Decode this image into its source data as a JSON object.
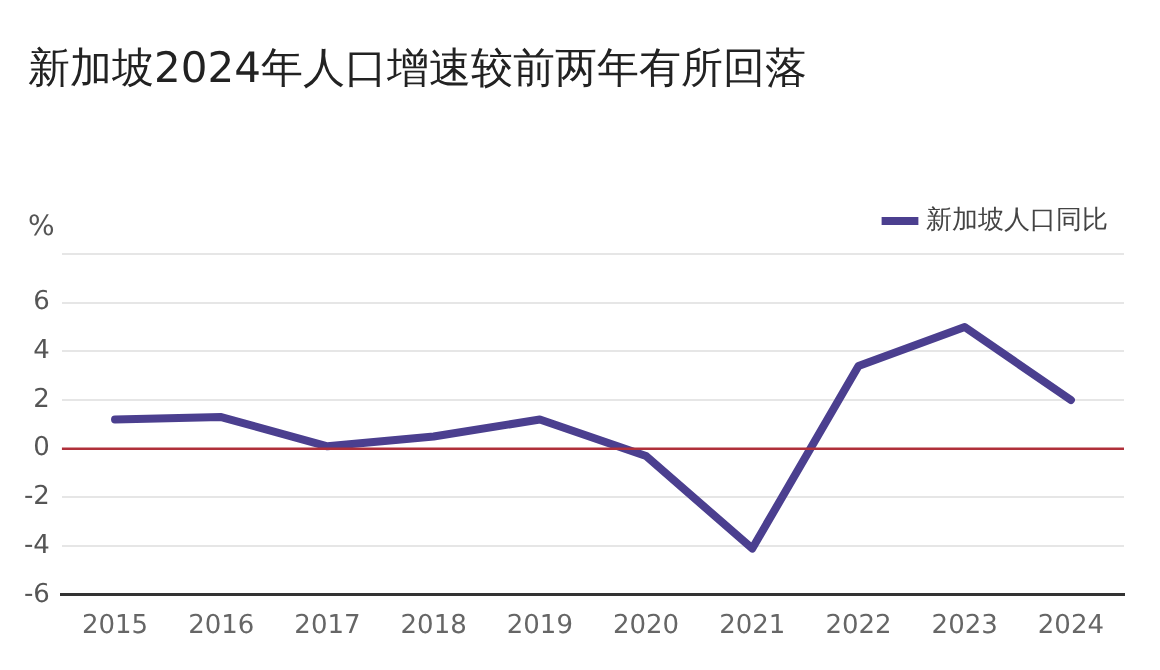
{
  "chart_data": {
    "type": "line",
    "title": "新加坡2024年人口增速较前两年有所回落",
    "ylabel": "%",
    "categories": [
      "2015",
      "2016",
      "2017",
      "2018",
      "2019",
      "2020",
      "2021",
      "2022",
      "2023",
      "2024"
    ],
    "series": [
      {
        "name": "新加坡人口同比",
        "color": "#4b3f8f",
        "values": [
          1.2,
          1.3,
          0.1,
          0.5,
          1.2,
          -0.3,
          -4.1,
          3.4,
          5.0,
          2.0
        ]
      }
    ],
    "ylim": [
      -6,
      8
    ],
    "yticks": [
      -6,
      -4,
      -2,
      0,
      2,
      4,
      6,
      {
        "value": 8,
        "label": null
      }
    ],
    "ref_lines": [
      {
        "axis": "y",
        "value": 0,
        "color": "#b0303a"
      }
    ],
    "grid": "y",
    "legend": "top right",
    "marker": "none",
    "line_style": "solid"
  }
}
